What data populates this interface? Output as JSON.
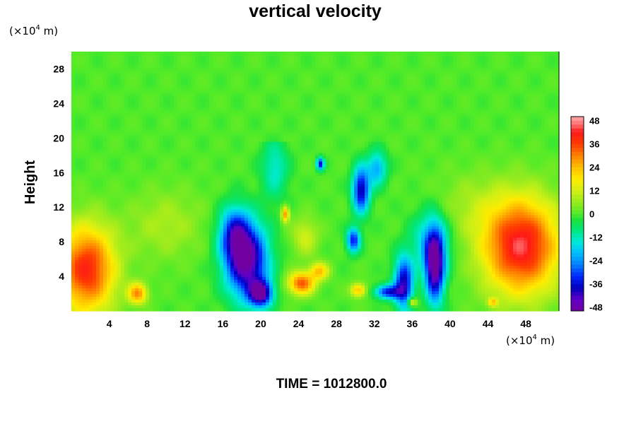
{
  "chart_data": {
    "type": "heatmap",
    "title": "vertical velocity",
    "ylabel": "Height",
    "x_unit": {
      "base": "(×10",
      "exp": "4",
      "rest": " m)"
    },
    "y_unit": {
      "base": "(×10",
      "exp": "4",
      "rest": " m)"
    },
    "time_label": "TIME = 1012800.0",
    "xlim": [
      0,
      51.5
    ],
    "ylim": [
      0,
      30
    ],
    "x_ticks": [
      "4",
      "8",
      "12",
      "16",
      "20",
      "24",
      "28",
      "32",
      "36",
      "40",
      "44",
      "48"
    ],
    "y_ticks": [
      "4",
      "8",
      "12",
      "16",
      "20",
      "24",
      "28"
    ],
    "colorbar": {
      "range": [
        -50,
        50
      ],
      "ticks": [
        "48",
        "36",
        "24",
        "12",
        "0",
        "-12",
        "-24",
        "-36",
        "-48"
      ]
    },
    "field_features": [
      {
        "x": 1.6,
        "y": 4.8,
        "value": 40,
        "rx": 3.0,
        "ry": 5.0
      },
      {
        "x": 7.0,
        "y": 2.0,
        "value": 28,
        "rx": 1.0,
        "ry": 1.2
      },
      {
        "x": 47.5,
        "y": 7.5,
        "value": 44,
        "rx": 4.0,
        "ry": 5.5
      },
      {
        "x": 24.3,
        "y": 3.2,
        "value": 34,
        "rx": 1.4,
        "ry": 1.3
      },
      {
        "x": 26.2,
        "y": 4.6,
        "value": 22,
        "rx": 1.0,
        "ry": 1.0
      },
      {
        "x": 22.6,
        "y": 11.2,
        "value": 28,
        "rx": 0.4,
        "ry": 0.9
      },
      {
        "x": 30.3,
        "y": 2.4,
        "value": 24,
        "rx": 0.8,
        "ry": 0.8
      },
      {
        "x": 36.0,
        "y": 1.0,
        "value": 22,
        "rx": 0.5,
        "ry": 0.5
      },
      {
        "x": 44.5,
        "y": 1.0,
        "value": 18,
        "rx": 0.5,
        "ry": 0.5
      },
      {
        "x": 18.5,
        "y": 5.8,
        "value": -50,
        "rx": 2.2,
        "ry": 4.2
      },
      {
        "x": 17.2,
        "y": 9.0,
        "value": -28,
        "rx": 1.6,
        "ry": 3.0
      },
      {
        "x": 20.0,
        "y": 2.0,
        "value": -44,
        "rx": 1.2,
        "ry": 1.5
      },
      {
        "x": 38.4,
        "y": 5.0,
        "value": -48,
        "rx": 1.0,
        "ry": 4.0
      },
      {
        "x": 35.1,
        "y": 3.2,
        "value": -40,
        "rx": 1.0,
        "ry": 3.0
      },
      {
        "x": 33.4,
        "y": 2.2,
        "value": -34,
        "rx": 1.3,
        "ry": 0.8
      },
      {
        "x": 30.6,
        "y": 14.0,
        "value": -40,
        "rx": 0.9,
        "ry": 2.6
      },
      {
        "x": 29.8,
        "y": 8.2,
        "value": -34,
        "rx": 0.7,
        "ry": 1.4
      },
      {
        "x": 26.3,
        "y": 17.0,
        "value": -36,
        "rx": 0.4,
        "ry": 0.7
      },
      {
        "x": 21.5,
        "y": 16.5,
        "value": -14,
        "rx": 1.4,
        "ry": 3.5
      },
      {
        "x": 24.7,
        "y": 8.6,
        "value": 12,
        "rx": 1.4,
        "ry": 2.2
      },
      {
        "x": 38.0,
        "y": 8.0,
        "value": -20,
        "rx": 2.0,
        "ry": 3.5
      },
      {
        "x": 10.0,
        "y": 10.0,
        "value": 8,
        "rx": 4.0,
        "ry": 4.0
      },
      {
        "x": 42.0,
        "y": 12.0,
        "value": 6,
        "rx": 4.0,
        "ry": 4.0
      },
      {
        "x": 32.3,
        "y": 16.5,
        "value": -22,
        "rx": 1.0,
        "ry": 2.0
      }
    ]
  }
}
